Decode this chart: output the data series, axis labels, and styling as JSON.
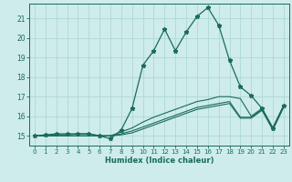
{
  "xlabel": "Humidex (Indice chaleur)",
  "bg_color": "#ceecea",
  "grid_color": "#aed8d4",
  "line_color": "#1a6b5a",
  "xlim": [
    -0.5,
    23.5
  ],
  "ylim": [
    14.5,
    21.75
  ],
  "yticks": [
    15,
    16,
    17,
    18,
    19,
    20,
    21
  ],
  "xticks": [
    0,
    1,
    2,
    3,
    4,
    5,
    6,
    7,
    8,
    9,
    10,
    11,
    12,
    13,
    14,
    15,
    16,
    17,
    18,
    19,
    20,
    21,
    22,
    23
  ],
  "series1_x": [
    0,
    1,
    2,
    3,
    4,
    5,
    6,
    7,
    8,
    9,
    10,
    11,
    12,
    13,
    14,
    15,
    16,
    17,
    18,
    19,
    20,
    21,
    22,
    23
  ],
  "series1_y": [
    15.0,
    15.05,
    15.1,
    15.1,
    15.1,
    15.1,
    15.0,
    14.85,
    15.3,
    16.4,
    18.6,
    19.35,
    20.45,
    19.35,
    20.3,
    21.1,
    21.55,
    20.65,
    18.85,
    17.5,
    17.05,
    16.4,
    15.4,
    16.55
  ],
  "series2_x": [
    0,
    1,
    2,
    3,
    4,
    5,
    6,
    7,
    8,
    9,
    10,
    11,
    12,
    13,
    14,
    15,
    16,
    17,
    18,
    19,
    20,
    21,
    22,
    23
  ],
  "series2_y": [
    15.0,
    15.0,
    15.05,
    15.05,
    15.1,
    15.1,
    15.0,
    15.0,
    15.2,
    15.4,
    15.7,
    15.95,
    16.15,
    16.35,
    16.55,
    16.75,
    16.85,
    17.0,
    17.0,
    16.9,
    16.0,
    16.4,
    15.4,
    16.55
  ],
  "series3_x": [
    0,
    1,
    2,
    3,
    4,
    5,
    6,
    7,
    8,
    9,
    10,
    11,
    12,
    13,
    14,
    15,
    16,
    17,
    18,
    19,
    20,
    21,
    22,
    23
  ],
  "series3_y": [
    15.0,
    15.0,
    15.0,
    15.0,
    15.0,
    15.0,
    15.0,
    15.0,
    15.1,
    15.25,
    15.45,
    15.65,
    15.85,
    16.05,
    16.25,
    16.45,
    16.55,
    16.65,
    16.75,
    15.95,
    15.95,
    16.35,
    15.35,
    16.5
  ],
  "series4_x": [
    0,
    1,
    2,
    3,
    4,
    5,
    6,
    7,
    8,
    9,
    10,
    11,
    12,
    13,
    14,
    15,
    16,
    17,
    18,
    19,
    20,
    21,
    22,
    23
  ],
  "series4_y": [
    15.0,
    15.0,
    15.0,
    15.0,
    15.0,
    15.0,
    15.0,
    15.0,
    15.05,
    15.15,
    15.35,
    15.55,
    15.75,
    15.95,
    16.15,
    16.35,
    16.45,
    16.55,
    16.65,
    15.9,
    15.9,
    16.3,
    15.3,
    16.45
  ]
}
